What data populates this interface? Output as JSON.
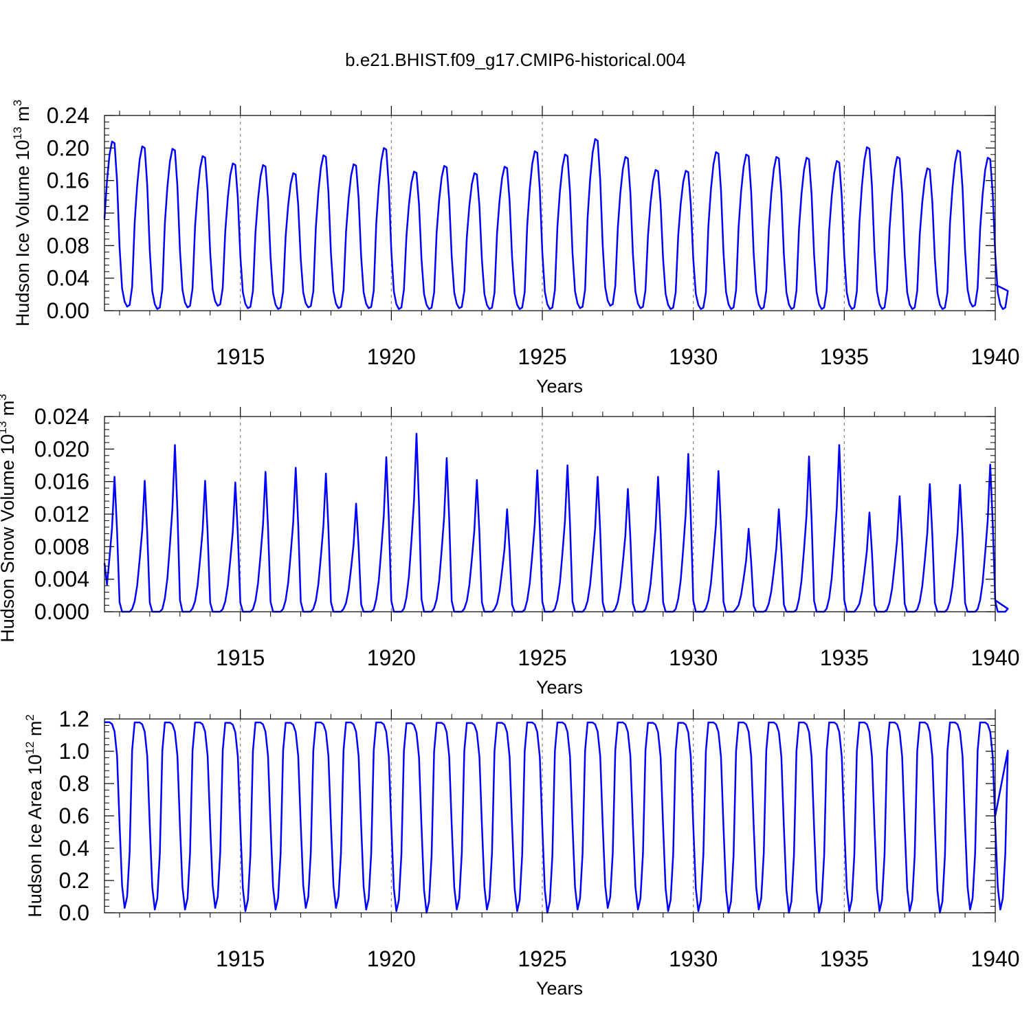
{
  "title": "b.e21.BHIST.f09_g17.CMIP6-historical.004",
  "colors": {
    "line": "#0000ff",
    "axis": "#000000",
    "grid": "#808080"
  },
  "chart_data": [
    {
      "type": "line",
      "name": "ice-volume",
      "ylabel": "Hudson Ice Volume 10",
      "ylabel_exp": "13",
      "ylabel_unit": " m",
      "ylabel_unit_exp": "3",
      "xlabel": "Years",
      "xlim": [
        1910.5,
        1940.0
      ],
      "ylim": [
        0,
        0.24
      ],
      "yticks": [
        0.0,
        0.04,
        0.08,
        0.12,
        0.16,
        0.2,
        0.24
      ],
      "ytick_labels": [
        "0.00",
        "0.04",
        "0.08",
        "0.12",
        "0.16",
        "0.20",
        "0.24"
      ],
      "xticks": [
        1915,
        1920,
        1925,
        1930,
        1935,
        1940
      ],
      "xtick_labels": [
        "1915",
        "1920",
        "1925",
        "1930",
        "1935",
        "1940"
      ],
      "start_year": 1910.5,
      "peaks": [
        0.208,
        0.202,
        0.199,
        0.19,
        0.181,
        0.179,
        0.169,
        0.191,
        0.18,
        0.2,
        0.171,
        0.178,
        0.169,
        0.177,
        0.196,
        0.192,
        0.211,
        0.189,
        0.173,
        0.172,
        0.195,
        0.192,
        0.189,
        0.188,
        0.184,
        0.201,
        0.189,
        0.175,
        0.197,
        0.188
      ],
      "troughs": [
        0.005,
        0.002,
        0.004,
        0.006,
        0.003,
        0.002,
        0.004,
        0.003,
        0.003,
        0.002,
        0.002,
        0.003,
        0.002,
        0.002,
        0.002,
        0.003,
        0.006,
        0.003,
        0.002,
        0.002,
        0.002,
        0.002,
        0.002,
        0.002,
        0.002,
        0.002,
        0.002,
        0.002,
        0.005,
        0.002
      ],
      "end_value": 0.032,
      "shape": "ice"
    },
    {
      "type": "line",
      "name": "snow-volume",
      "ylabel": "Hudson Snow Volume 10",
      "ylabel_exp": "13",
      "ylabel_unit": " m",
      "ylabel_unit_exp": "3",
      "xlabel": "Years",
      "xlim": [
        1910.5,
        1940.0
      ],
      "ylim": [
        0,
        0.024
      ],
      "yticks": [
        0.0,
        0.004,
        0.008,
        0.012,
        0.016,
        0.02,
        0.024
      ],
      "ytick_labels": [
        "0.000",
        "0.004",
        "0.008",
        "0.012",
        "0.016",
        "0.020",
        "0.024"
      ],
      "xticks": [
        1915,
        1920,
        1925,
        1930,
        1935,
        1940
      ],
      "xtick_labels": [
        "1915",
        "1920",
        "1925",
        "1930",
        "1935",
        "1940"
      ],
      "start_year": 1910.5,
      "peaks": [
        0.0166,
        0.0161,
        0.0205,
        0.0161,
        0.0159,
        0.0172,
        0.0177,
        0.017,
        0.0133,
        0.019,
        0.0219,
        0.0189,
        0.0162,
        0.0126,
        0.0174,
        0.018,
        0.0166,
        0.0151,
        0.0166,
        0.0194,
        0.0173,
        0.0102,
        0.0126,
        0.0191,
        0.0205,
        0.0122,
        0.0142,
        0.0157,
        0.0156,
        0.0181
      ],
      "troughs": [
        0.0,
        0.0,
        0.0,
        0.0,
        0.0,
        0.0,
        0.0,
        0.0,
        0.0,
        0.0,
        0.0,
        0.0,
        0.0,
        0.0,
        0.0,
        0.0,
        0.0,
        0.0,
        0.0,
        0.0,
        0.0,
        0.0,
        0.0,
        0.0,
        0.0,
        0.0,
        0.0,
        0.0,
        0.0,
        0.0
      ],
      "start_value": 0.006,
      "end_value": 0.0014,
      "shape": "snow"
    },
    {
      "type": "line",
      "name": "ice-area",
      "ylabel": "Hudson Ice Area 10",
      "ylabel_exp": "12",
      "ylabel_unit": " m",
      "ylabel_unit_exp": "2",
      "xlabel": "Years",
      "xlim": [
        1910.5,
        1940.0
      ],
      "ylim": [
        0,
        1.2
      ],
      "yticks": [
        0.0,
        0.2,
        0.4,
        0.6,
        0.8,
        1.0,
        1.2
      ],
      "ytick_labels": [
        "0.0",
        "0.2",
        "0.4",
        "0.6",
        "0.8",
        "1.0",
        "1.2"
      ],
      "xticks": [
        1915,
        1920,
        1925,
        1930,
        1935,
        1940
      ],
      "xtick_labels": [
        "1915",
        "1920",
        "1925",
        "1930",
        "1935",
        "1940"
      ],
      "start_year": 1910.5,
      "peaks": [
        1.18,
        1.178,
        1.178,
        1.178,
        1.176,
        1.178,
        1.176,
        1.178,
        1.178,
        1.178,
        1.174,
        1.176,
        1.175,
        1.176,
        1.178,
        1.178,
        1.178,
        1.178,
        1.176,
        1.176,
        1.178,
        1.178,
        1.178,
        1.178,
        1.178,
        1.178,
        1.178,
        1.178,
        1.178,
        1.178
      ],
      "troughs": [
        0.03,
        0.02,
        0.02,
        0.03,
        0.01,
        0.02,
        0.03,
        0.03,
        0.02,
        0.01,
        0.0,
        0.02,
        0.02,
        0.01,
        0.0,
        0.02,
        0.03,
        0.02,
        0.01,
        0.01,
        0.0,
        0.02,
        0.0,
        0.0,
        0.01,
        0.01,
        0.01,
        0.0,
        0.02,
        0.02
      ],
      "end_value": 0.6,
      "shape": "area"
    }
  ]
}
